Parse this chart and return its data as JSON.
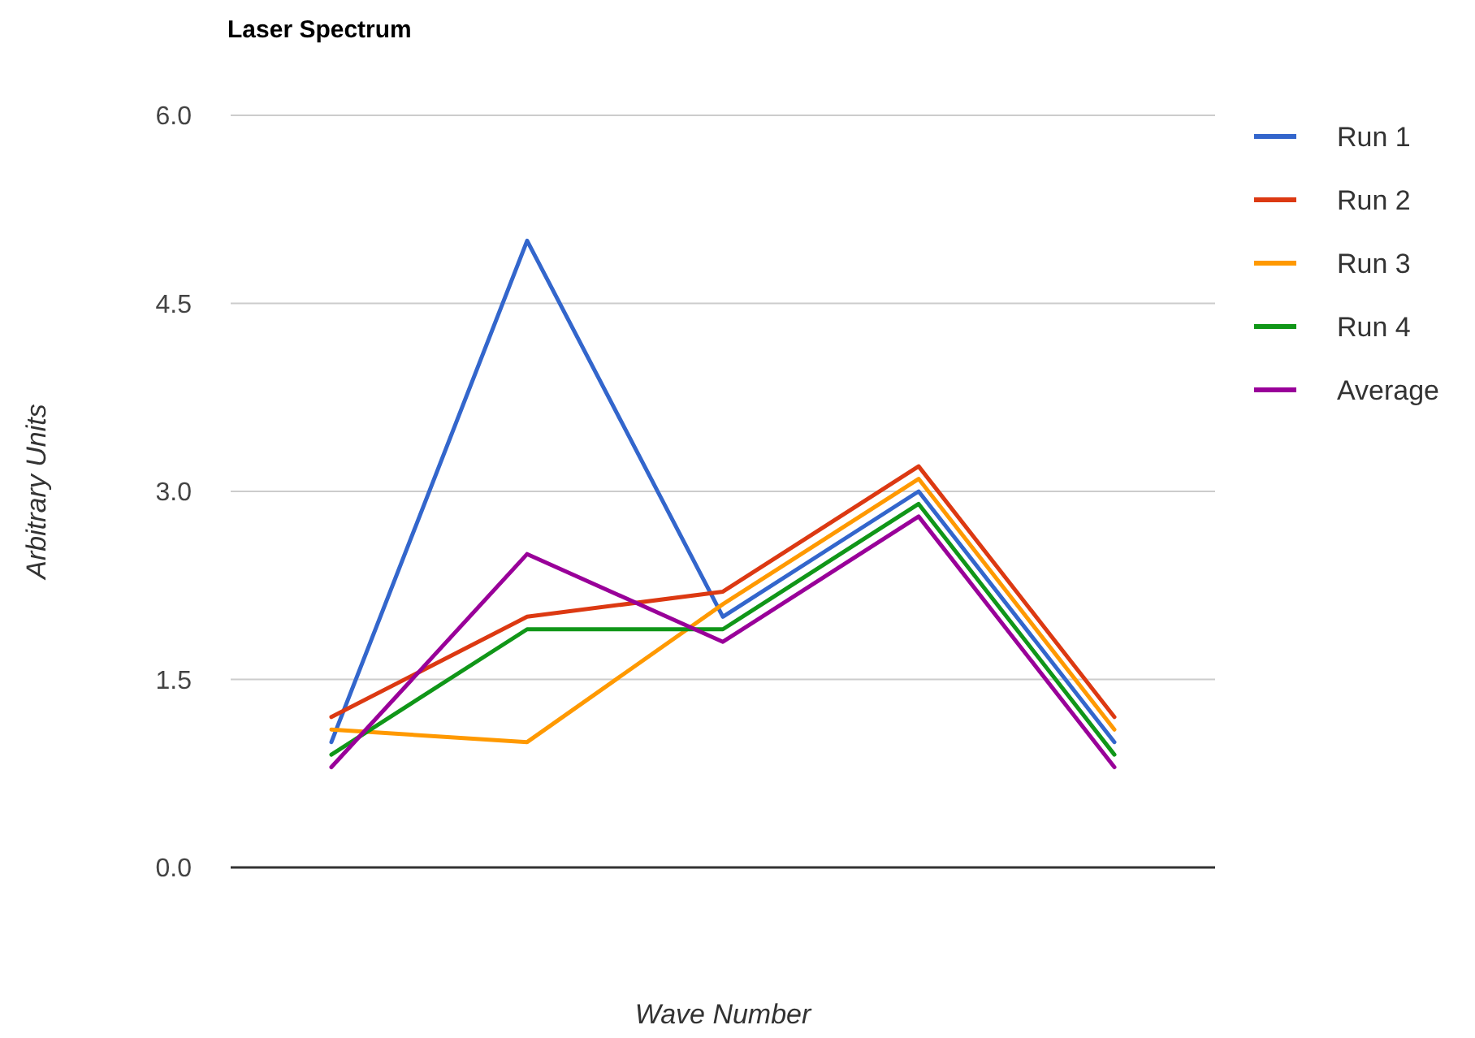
{
  "chart_data": {
    "type": "line",
    "title": "Laser Spectrum",
    "xlabel": "Wave Number",
    "ylabel": "Arbitrary Units",
    "categories": [
      null,
      null,
      null,
      null,
      null
    ],
    "series": [
      {
        "name": "Run 1",
        "color": "#3366cc",
        "values": [
          1.0,
          5.0,
          2.0,
          3.0,
          1.0
        ]
      },
      {
        "name": "Run 2",
        "color": "#dc3912",
        "values": [
          1.2,
          2.0,
          2.2,
          3.2,
          1.2
        ]
      },
      {
        "name": "Run 3",
        "color": "#ff9900",
        "values": [
          1.1,
          1.0,
          2.1,
          3.1,
          1.1
        ]
      },
      {
        "name": "Run 4",
        "color": "#109618",
        "values": [
          0.9,
          1.9,
          1.9,
          2.9,
          0.9
        ]
      },
      {
        "name": "Average",
        "color": "#990099",
        "values": [
          0.8,
          2.5,
          1.8,
          2.8,
          0.8
        ]
      }
    ],
    "ylim": [
      0,
      6
    ],
    "yticks": [
      {
        "value": 0,
        "label": "0.0"
      },
      {
        "value": 1.5,
        "label": "1.5"
      },
      {
        "value": 3,
        "label": "3.0"
      },
      {
        "value": 4.5,
        "label": "4.5"
      },
      {
        "value": 6,
        "label": "6.0"
      }
    ],
    "grid": "y",
    "legend": "right",
    "marker": "none",
    "line_style": "solid"
  }
}
